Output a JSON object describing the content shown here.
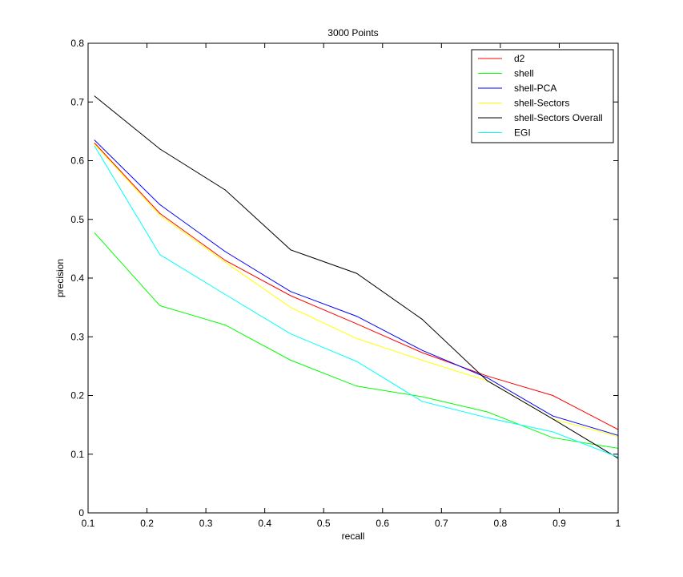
{
  "chart_data": {
    "type": "line",
    "title": "3000 Points",
    "xlabel": "recall",
    "ylabel": "precision",
    "xlim": [
      0.1,
      1
    ],
    "ylim": [
      0,
      0.8
    ],
    "xticks": [
      0.1,
      0.2,
      0.3,
      0.4,
      0.5,
      0.6,
      0.7,
      0.8,
      0.9,
      1
    ],
    "xtick_labels": [
      "0.1",
      "0.2",
      "0.3",
      "0.4",
      "0.5",
      "0.6",
      "0.7",
      "0.8",
      "0.9",
      "1"
    ],
    "yticks": [
      0,
      0.1,
      0.2,
      0.3,
      0.4,
      0.5,
      0.6,
      0.7,
      0.8
    ],
    "ytick_labels": [
      "0",
      "0.1",
      "0.2",
      "0.3",
      "0.4",
      "0.5",
      "0.6",
      "0.7",
      "0.8"
    ],
    "grid": false,
    "legend_position": "top-right",
    "x": [
      0.111,
      0.222,
      0.333,
      0.444,
      0.556,
      0.667,
      0.778,
      0.889,
      1.0
    ],
    "series": [
      {
        "name": "d2",
        "color": "#ff0000",
        "values": [
          0.63,
          0.51,
          0.43,
          0.37,
          0.322,
          0.273,
          0.233,
          0.2,
          0.142
        ]
      },
      {
        "name": "shell",
        "color": "#00ff00",
        "values": [
          0.477,
          0.353,
          0.32,
          0.26,
          0.216,
          0.198,
          0.172,
          0.128,
          0.11
        ]
      },
      {
        "name": "shell-PCA",
        "color": "#0000ff",
        "values": [
          0.635,
          0.525,
          0.445,
          0.377,
          0.335,
          0.277,
          0.23,
          0.165,
          0.132
        ]
      },
      {
        "name": "shell-Sectors",
        "color": "#ffff00",
        "values": [
          0.628,
          0.507,
          0.427,
          0.35,
          0.297,
          0.26,
          0.225,
          0.16,
          0.13
        ]
      },
      {
        "name": "shell-Sectors Overall",
        "color": "#000000",
        "values": [
          0.71,
          0.62,
          0.55,
          0.448,
          0.408,
          0.33,
          0.225,
          0.16,
          0.093
        ]
      },
      {
        "name": "EGI",
        "color": "#00ffff",
        "values": [
          0.625,
          0.44,
          0.372,
          0.305,
          0.258,
          0.19,
          0.162,
          0.138,
          0.095
        ]
      }
    ]
  }
}
